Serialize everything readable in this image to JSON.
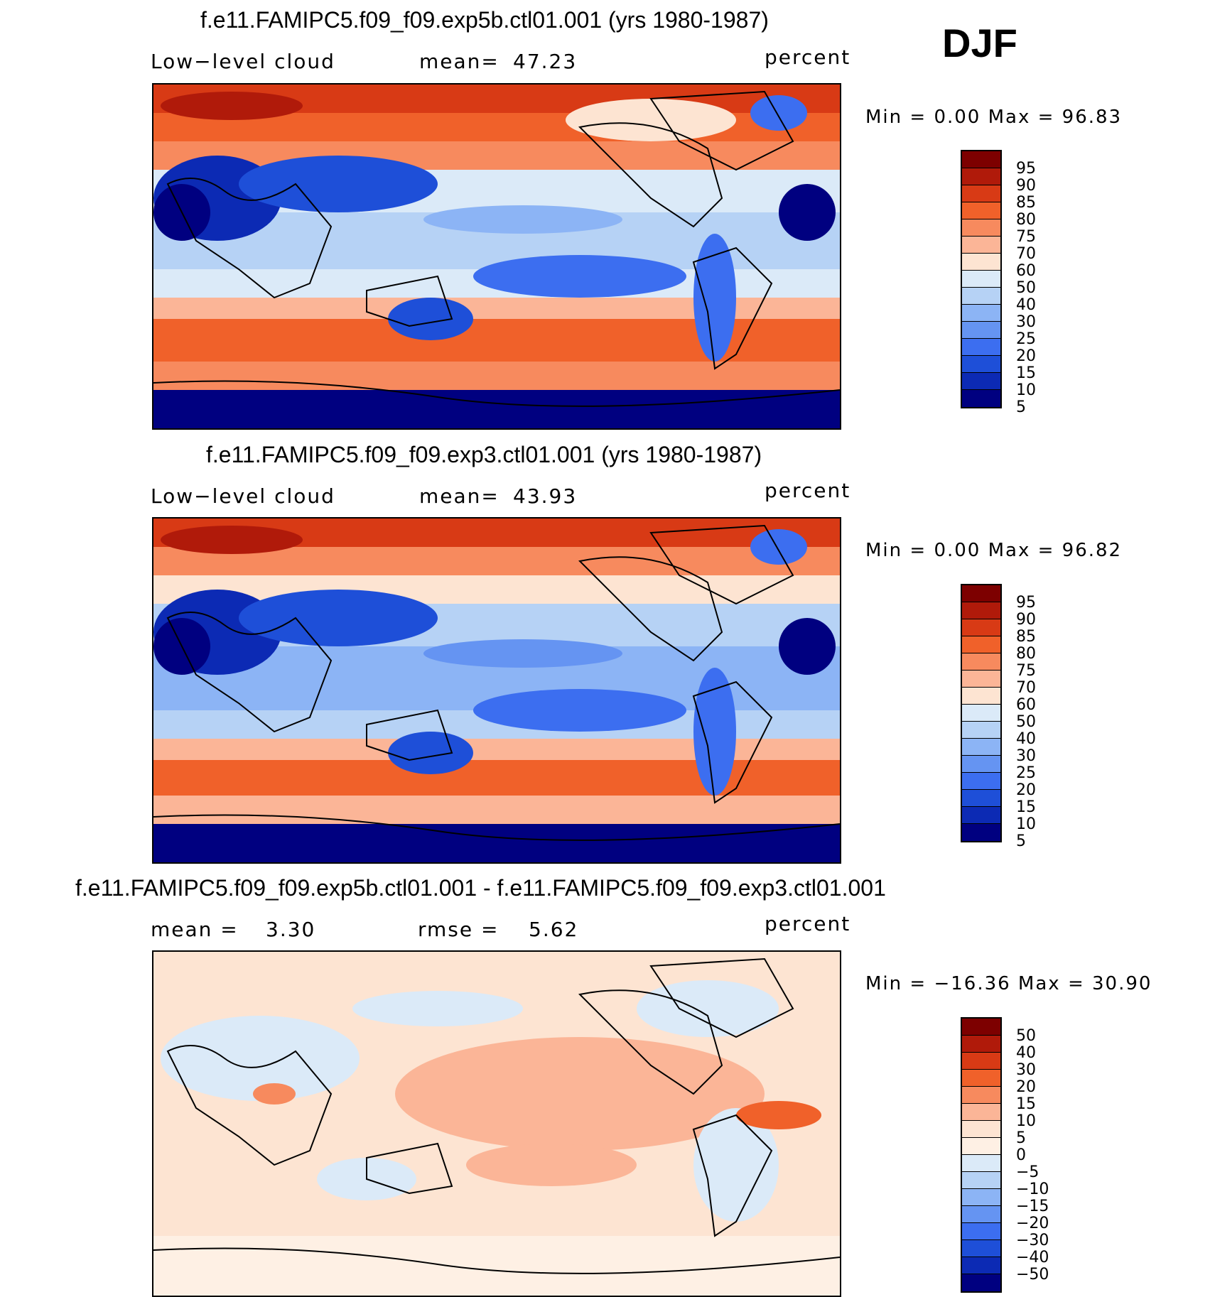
{
  "season": "DJF",
  "panels": [
    {
      "title": "f.e11.FAMIPC5.f09_f09.exp5b.ctl01.001 (yrs 1980-1987)",
      "left_label": "Low−level cloud",
      "center_label": "mean=",
      "center_value": "47.23",
      "units": "percent",
      "minmax": "Min =     0.00 Max =    96.83",
      "colorbar": {
        "colors": [
          "#7d0000",
          "#b01a0a",
          "#d83a15",
          "#f0612a",
          "#f78a5e",
          "#fbb597",
          "#fde4d2",
          "#dbeaf8",
          "#b6d2f5",
          "#8cb4f5",
          "#6594f2",
          "#3c6ef0",
          "#1e4fd8",
          "#0c2ab4",
          "#000080"
        ],
        "labels": [
          "95",
          "90",
          "85",
          "80",
          "75",
          "70",
          "60",
          "50",
          "40",
          "30",
          "25",
          "20",
          "15",
          "10",
          "5"
        ]
      }
    },
    {
      "title": "f.e11.FAMIPC5.f09_f09.exp3.ctl01.001 (yrs 1980-1987)",
      "left_label": "Low−level cloud",
      "center_label": "mean=",
      "center_value": "43.93",
      "units": "percent",
      "minmax": "Min =     0.00 Max =    96.82",
      "colorbar": {
        "colors": [
          "#7d0000",
          "#b01a0a",
          "#d83a15",
          "#f0612a",
          "#f78a5e",
          "#fbb597",
          "#fde4d2",
          "#dbeaf8",
          "#b6d2f5",
          "#8cb4f5",
          "#6594f2",
          "#3c6ef0",
          "#1e4fd8",
          "#0c2ab4",
          "#000080"
        ],
        "labels": [
          "95",
          "90",
          "85",
          "80",
          "75",
          "70",
          "60",
          "50",
          "40",
          "30",
          "25",
          "20",
          "15",
          "10",
          "5"
        ]
      }
    },
    {
      "title": "f.e11.FAMIPC5.f09_f09.exp5b.ctl01.001 - f.e11.FAMIPC5.f09_f09.exp3.ctl01.001",
      "left_label": "mean =",
      "left_value": "3.30",
      "center_label": "rmse =",
      "center_value": "5.62",
      "units": "percent",
      "minmax": "Min = −16.36 Max =    30.90",
      "colorbar": {
        "colors": [
          "#7d0000",
          "#b01a0a",
          "#d83a15",
          "#f0612a",
          "#f78a5e",
          "#fbb597",
          "#fde4d2",
          "#fef0e4",
          "#dbeaf8",
          "#b6d2f5",
          "#8cb4f5",
          "#6594f2",
          "#3c6ef0",
          "#1e4fd8",
          "#0c2ab4",
          "#000080"
        ],
        "labels": [
          "50",
          "40",
          "30",
          "20",
          "15",
          "10",
          "5",
          "0",
          "−5",
          "−10",
          "−15",
          "−20",
          "−30",
          "−40",
          "−50"
        ]
      }
    }
  ]
}
